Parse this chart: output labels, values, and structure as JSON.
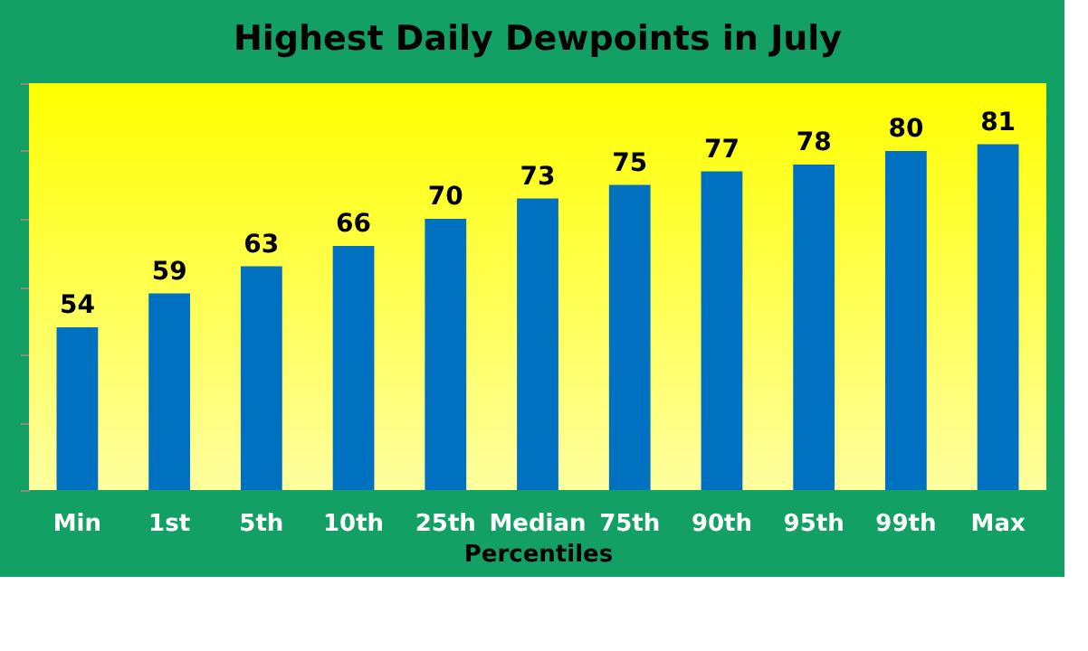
{
  "chart_data": {
    "type": "bar",
    "title": "Highest Daily Dewpoints in July",
    "xlabel": "Percentiles",
    "categories": [
      "Min",
      "1st",
      "5th",
      "10th",
      "25th",
      "Median",
      "75th",
      "90th",
      "95th",
      "99th",
      "Max"
    ],
    "values": [
      54,
      59,
      63,
      66,
      70,
      73,
      75,
      77,
      78,
      80,
      81
    ],
    "color": "#0070c0",
    "ylim": [
      30,
      90
    ],
    "tick_labels": "x",
    "data_labels": true
  }
}
